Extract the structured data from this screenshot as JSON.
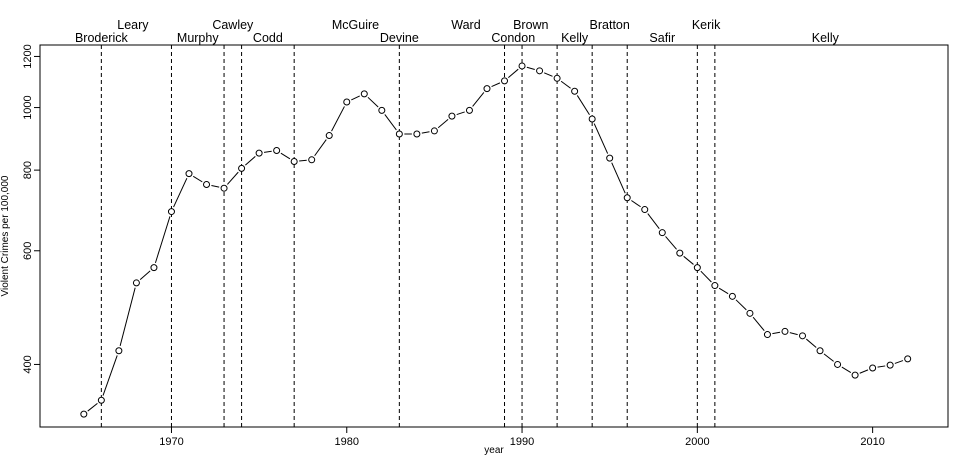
{
  "chart_data": {
    "type": "line",
    "title": "",
    "xlabel": "year",
    "ylabel": "Violent Crimes per 100,000",
    "xlim": [
      1962.5,
      2014.3
    ],
    "ylim": [
      320,
      1250
    ],
    "y_scale": "log",
    "x_ticks": [
      1970,
      1980,
      1990,
      2000,
      2010
    ],
    "y_ticks": [
      400,
      600,
      800,
      1000,
      1200
    ],
    "grid": false,
    "legend": "none",
    "series": [
      {
        "x": [
          1965,
          1966,
          1967,
          1968,
          1969,
          1970,
          1971,
          1972,
          1973,
          1974,
          1975,
          1976,
          1977,
          1978,
          1979,
          1980,
          1981,
          1982,
          1983,
          1984,
          1985,
          1986,
          1987,
          1988,
          1989,
          1990,
          1991,
          1992,
          1993,
          1994,
          1995,
          1996,
          1997,
          1998,
          1999,
          2000,
          2001,
          2002,
          2003,
          2004,
          2005,
          2006,
          2007,
          2008,
          2009,
          2010,
          2011,
          2012
        ],
        "y": [
          335,
          352,
          420,
          535,
          565,
          690,
          790,
          760,
          750,
          805,
          850,
          858,
          825,
          830,
          905,
          1020,
          1050,
          990,
          910,
          910,
          920,
          970,
          990,
          1070,
          1100,
          1160,
          1140,
          1110,
          1060,
          960,
          835,
          725,
          695,
          640,
          595,
          565,
          530,
          510,
          480,
          445,
          450,
          443,
          420,
          400,
          385,
          395,
          399,
          408
        ]
      }
    ],
    "mayor_lines": {
      "x": [
        1966,
        1970,
        1973,
        1974,
        1977,
        1983,
        1989,
        1990,
        1992,
        1994,
        1996,
        2000,
        2001
      ],
      "color": "#000000",
      "style": "dashed"
    },
    "annotations": [
      {
        "text": "Broderick",
        "x": 1966,
        "row": "lower"
      },
      {
        "text": "Leary",
        "x": 1967.8,
        "row": "upper"
      },
      {
        "text": "Murphy",
        "x": 1971.5,
        "row": "lower"
      },
      {
        "text": "Cawley",
        "x": 1973.5,
        "row": "upper"
      },
      {
        "text": "Codd",
        "x": 1975.5,
        "row": "lower"
      },
      {
        "text": "McGuire",
        "x": 1980.5,
        "row": "upper"
      },
      {
        "text": "Devine",
        "x": 1983,
        "row": "lower"
      },
      {
        "text": "Ward",
        "x": 1986.8,
        "row": "upper"
      },
      {
        "text": "Condon",
        "x": 1989.5,
        "row": "lower"
      },
      {
        "text": "Brown",
        "x": 1990.5,
        "row": "upper"
      },
      {
        "text": "Kelly",
        "x": 1993,
        "row": "lower"
      },
      {
        "text": "Bratton",
        "x": 1995,
        "row": "upper"
      },
      {
        "text": "Safir",
        "x": 1998,
        "row": "lower"
      },
      {
        "text": "Kerik",
        "x": 2000.5,
        "row": "upper"
      },
      {
        "text": "Kelly",
        "x": 2007.3,
        "row": "lower"
      }
    ]
  }
}
